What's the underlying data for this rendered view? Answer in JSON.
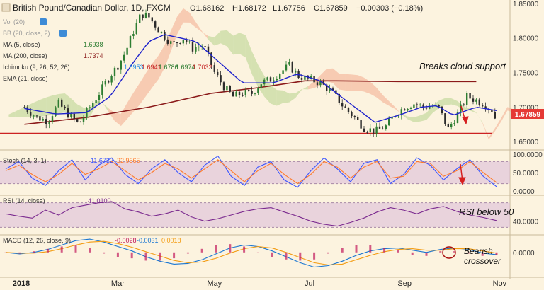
{
  "header": {
    "symbol": "British Pound/Canadian Dollar, 1D, FXCM",
    "open": "O1.68162",
    "high": "H1.68172",
    "low": "L1.67756",
    "close": "C1.67859",
    "change": "−0.00303 (−0.18%)"
  },
  "indicators": {
    "vol": "Vol (20)",
    "bb": "BB (20, close, 2)",
    "ma5": {
      "label": "MA (5, close)",
      "value": "1.6938"
    },
    "ma200": {
      "label": "MA (200, close)",
      "value": "1.7374"
    },
    "ichimoku": {
      "label": "Ichimoku (9, 26, 52, 26)",
      "values": [
        "1.6953",
        "1.6941",
        "1.6786",
        "1.6974",
        "1.7032"
      ]
    },
    "ema": {
      "label": "EMA (21, close)"
    }
  },
  "annotations": {
    "cloud": "Breaks cloud support",
    "rsi": "RSI below 50",
    "macd_line1": "Bearish",
    "macd_line2": "crossover"
  },
  "price_badge": "1.67859",
  "colors": {
    "background": "#fcf3df",
    "candle_up": "#2e7d32",
    "candle_down": "#2b2b2b",
    "ema": "#1e22cc",
    "ma200": "#8b1a1a",
    "ichimoku_cloud_bull": "#b5d28a",
    "ichimoku_cloud_bear": "#f2a98c",
    "support": "#cc2222",
    "arrow": "#d62020",
    "stoch_k": "#3a55ff",
    "stoch_d": "#ff7a2a",
    "rsi": "#7b2a8f",
    "macd": "#1976d2",
    "signal": "#f39c12",
    "hist": "#c2185b",
    "badge": "#e53935"
  },
  "chart_data": [
    {
      "type": "candlestick",
      "title": "British Pound/Canadian Dollar, 1D, FXCM",
      "x_tick_labels": [
        "2018",
        "Mar",
        "May",
        "Jul",
        "Sep",
        "Nov"
      ],
      "y_tick_labels": [
        "1.85000",
        "1.80000",
        "1.75000",
        "1.70000",
        "1.65000"
      ],
      "ylim": [
        1.64,
        1.855
      ],
      "x_days": [
        -2,
        60,
        122,
        183,
        244,
        305
      ],
      "support_level": 1.662,
      "last_price": 1.67859,
      "close_points": [
        [
          0,
          1.7
        ],
        [
          8,
          1.685
        ],
        [
          15,
          1.68
        ],
        [
          22,
          1.705
        ],
        [
          28,
          1.69
        ],
        [
          35,
          1.675
        ],
        [
          42,
          1.7
        ],
        [
          48,
          1.72
        ],
        [
          55,
          1.745
        ],
        [
          60,
          1.76
        ],
        [
          65,
          1.78
        ],
        [
          70,
          1.81
        ],
        [
          75,
          1.835
        ],
        [
          80,
          1.83
        ],
        [
          87,
          1.81
        ],
        [
          95,
          1.79
        ],
        [
          102,
          1.8
        ],
        [
          108,
          1.785
        ],
        [
          115,
          1.79
        ],
        [
          122,
          1.75
        ],
        [
          128,
          1.73
        ],
        [
          134,
          1.715
        ],
        [
          140,
          1.72
        ],
        [
          146,
          1.72
        ],
        [
          152,
          1.735
        ],
        [
          158,
          1.74
        ],
        [
          164,
          1.75
        ],
        [
          170,
          1.76
        ],
        [
          176,
          1.745
        ],
        [
          183,
          1.74
        ],
        [
          190,
          1.735
        ],
        [
          198,
          1.72
        ],
        [
          205,
          1.7
        ],
        [
          212,
          1.685
        ],
        [
          218,
          1.67
        ],
        [
          225,
          1.665
        ],
        [
          232,
          1.672
        ],
        [
          238,
          1.69
        ],
        [
          244,
          1.7
        ],
        [
          250,
          1.705
        ],
        [
          256,
          1.7
        ],
        [
          262,
          1.702
        ],
        [
          266,
          1.698
        ],
        [
          272,
          1.668
        ],
        [
          278,
          1.69
        ],
        [
          284,
          1.715
        ],
        [
          290,
          1.71
        ],
        [
          295,
          1.705
        ],
        [
          300,
          1.696
        ],
        [
          303,
          1.679
        ]
      ],
      "ema_points": [
        [
          0,
          1.698
        ],
        [
          20,
          1.69
        ],
        [
          40,
          1.692
        ],
        [
          55,
          1.715
        ],
        [
          70,
          1.765
        ],
        [
          80,
          1.795
        ],
        [
          90,
          1.805
        ],
        [
          110,
          1.795
        ],
        [
          125,
          1.765
        ],
        [
          140,
          1.735
        ],
        [
          160,
          1.735
        ],
        [
          175,
          1.748
        ],
        [
          190,
          1.738
        ],
        [
          205,
          1.712
        ],
        [
          225,
          1.678
        ],
        [
          240,
          1.688
        ],
        [
          255,
          1.7
        ],
        [
          265,
          1.702
        ],
        [
          275,
          1.688
        ],
        [
          290,
          1.7
        ],
        [
          303,
          1.695
        ]
      ],
      "ma200_points": [
        [
          0,
          1.675
        ],
        [
          40,
          1.685
        ],
        [
          80,
          1.7
        ],
        [
          120,
          1.72
        ],
        [
          150,
          1.728
        ],
        [
          180,
          1.738
        ],
        [
          200,
          1.738
        ],
        [
          240,
          1.737
        ],
        [
          290,
          1.737
        ]
      ]
    },
    {
      "type": "line",
      "title": "Stoch (14, 3, 1)",
      "legend_values": [
        "11.6732",
        "22.9665"
      ],
      "y_tick_labels": [
        "100.0000",
        "50.0000",
        "0.0000"
      ],
      "ylim": [
        0,
        100
      ],
      "band": [
        20,
        80
      ],
      "series": [
        {
          "name": "%K",
          "values": [
            60,
            80,
            35,
            15,
            55,
            85,
            30,
            70,
            90,
            45,
            20,
            60,
            85,
            50,
            25,
            70,
            95,
            40,
            15,
            65,
            80,
            30,
            10,
            55,
            90,
            60,
            25,
            75,
            85,
            20,
            45,
            90,
            70,
            30,
            60,
            85,
            40,
            12
          ]
        },
        {
          "name": "%D",
          "values": [
            55,
            70,
            45,
            25,
            45,
            75,
            45,
            60,
            80,
            55,
            30,
            50,
            75,
            60,
            35,
            60,
            85,
            55,
            25,
            55,
            75,
            45,
            20,
            45,
            80,
            65,
            35,
            65,
            80,
            35,
            40,
            80,
            75,
            40,
            55,
            80,
            50,
            23
          ]
        }
      ]
    },
    {
      "type": "line",
      "title": "RSI (14, close)",
      "legend_values": [
        "41.0100"
      ],
      "y_tick_labels": [
        "40.0000"
      ],
      "ylim": [
        20,
        80
      ],
      "band": [
        30,
        70
      ],
      "series": [
        {
          "name": "RSI",
          "values": [
            52,
            48,
            45,
            58,
            50,
            62,
            66,
            70,
            72,
            60,
            55,
            48,
            52,
            58,
            47,
            40,
            44,
            50,
            56,
            60,
            62,
            55,
            48,
            40,
            35,
            32,
            38,
            45,
            55,
            62,
            58,
            52,
            60,
            64,
            56,
            50,
            46,
            41
          ]
        }
      ]
    },
    {
      "type": "line",
      "title": "MACD (12, 26, close, 9)",
      "legend_values": [
        "-0.0028",
        "-0.0031",
        "0.0018"
      ],
      "y_tick_labels": [
        "0.0000"
      ],
      "ylim": [
        -0.03,
        0.02
      ],
      "series": [
        {
          "name": "MACD",
          "values": [
            0.0,
            -0.002,
            0.0,
            0.004,
            0.01,
            0.016,
            0.018,
            0.014,
            0.008,
            0.002,
            -0.006,
            -0.012,
            -0.016,
            -0.015,
            -0.01,
            -0.002,
            0.006,
            0.01,
            0.008,
            0.002,
            -0.006,
            -0.014,
            -0.02,
            -0.018,
            -0.012,
            -0.004,
            0.002,
            0.005,
            0.006,
            0.003,
            0.0,
            0.004,
            0.006,
            0.004,
            -0.001,
            -0.003
          ]
        },
        {
          "name": "Signal",
          "values": [
            0.0,
            -0.001,
            -0.001,
            0.001,
            0.005,
            0.01,
            0.014,
            0.015,
            0.012,
            0.007,
            0.001,
            -0.005,
            -0.011,
            -0.014,
            -0.013,
            -0.008,
            -0.001,
            0.005,
            0.008,
            0.006,
            0.0,
            -0.007,
            -0.014,
            -0.017,
            -0.016,
            -0.01,
            -0.004,
            0.001,
            0.004,
            0.005,
            0.003,
            0.003,
            0.005,
            0.005,
            0.002,
            -0.001
          ]
        }
      ]
    }
  ]
}
